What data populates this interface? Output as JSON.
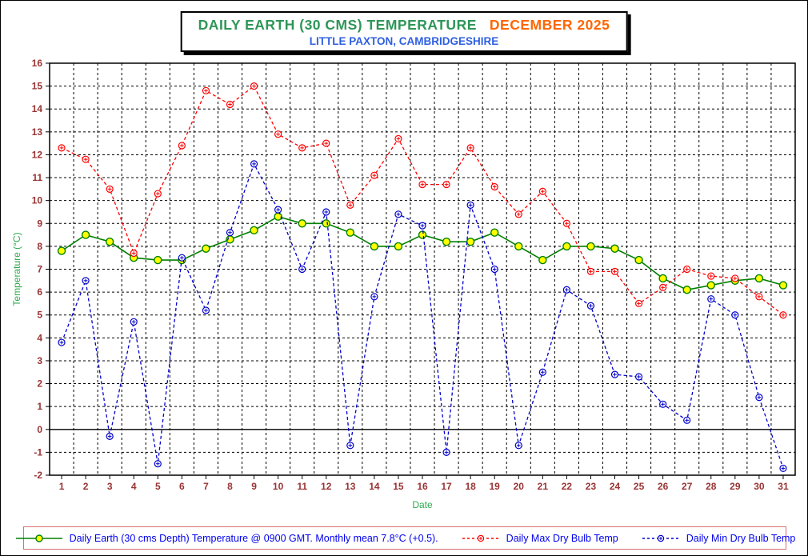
{
  "title": {
    "main": "DAILY EARTH (30 CMS) TEMPERATURE",
    "month": "DECEMBER 2025",
    "subtitle": "LITTLE PAXTON, CAMBRIDGESHIRE"
  },
  "colors": {
    "title_main": "#2E9658",
    "title_month": "#FF6600",
    "subtitle": "#2E5FE0",
    "axis_title": "#2FAA4F",
    "tick_labels": "#993333",
    "grid": "#000000",
    "legend_text": "#0000EE",
    "legend_border": "#D87070",
    "earth_line": "#008000",
    "earth_marker_fill": "#FFFF00",
    "max_line": "#FF0000",
    "min_line": "#0000CC"
  },
  "chart_data": {
    "type": "line",
    "x": [
      1,
      2,
      3,
      4,
      5,
      6,
      7,
      8,
      9,
      10,
      11,
      12,
      13,
      14,
      15,
      16,
      17,
      18,
      19,
      20,
      21,
      22,
      23,
      24,
      25,
      26,
      27,
      28,
      29,
      30,
      31
    ],
    "series": [
      {
        "name": "Daily Earth (30 cms Depth) Temperature @ 0900 GMT. Monthly mean 7.8°C (+0.5).",
        "color": "#008000",
        "marker_fill": "#FFFF00",
        "marker": "filled-circle",
        "style": "solid",
        "values": [
          7.8,
          8.5,
          8.2,
          7.5,
          7.4,
          7.4,
          7.9,
          8.3,
          8.7,
          9.3,
          9.0,
          9.0,
          8.6,
          8.0,
          8.0,
          8.5,
          8.2,
          8.2,
          8.6,
          8.0,
          7.4,
          8.0,
          8.0,
          7.9,
          7.4,
          6.6,
          6.1,
          6.3,
          6.5,
          6.6,
          6.3
        ]
      },
      {
        "name": "Daily Max Dry Bulb Temp",
        "color": "#FF0000",
        "marker_fill": "#FFFFFF",
        "marker": "circle-cross",
        "style": "dashed",
        "values": [
          12.3,
          11.8,
          10.5,
          7.7,
          10.3,
          12.4,
          14.8,
          14.2,
          15.0,
          12.9,
          12.3,
          12.5,
          9.8,
          11.1,
          12.7,
          10.7,
          10.7,
          12.3,
          10.6,
          9.4,
          10.4,
          9.0,
          6.9,
          6.9,
          5.5,
          6.2,
          7.0,
          6.7,
          6.6,
          5.8,
          5.0
        ]
      },
      {
        "name": "Daily Min Dry Bulb Temp",
        "color": "#0000CC",
        "marker_fill": "#FFFFFF",
        "marker": "circle-cross",
        "style": "dashed",
        "values": [
          3.8,
          6.5,
          -0.3,
          4.7,
          -1.5,
          7.5,
          5.2,
          8.6,
          11.6,
          9.6,
          7.0,
          9.5,
          -0.7,
          5.8,
          9.4,
          8.9,
          -1.0,
          9.8,
          7.0,
          -0.7,
          2.5,
          6.1,
          5.4,
          2.4,
          2.3,
          1.1,
          0.4,
          5.7,
          5.0,
          1.4,
          -1.7
        ]
      }
    ],
    "xlabel": "Date",
    "ylabel": "Temperature (°C)",
    "ylim": [
      -2,
      16
    ],
    "ytick_step": 1,
    "grid": true,
    "legend_position": "bottom"
  }
}
